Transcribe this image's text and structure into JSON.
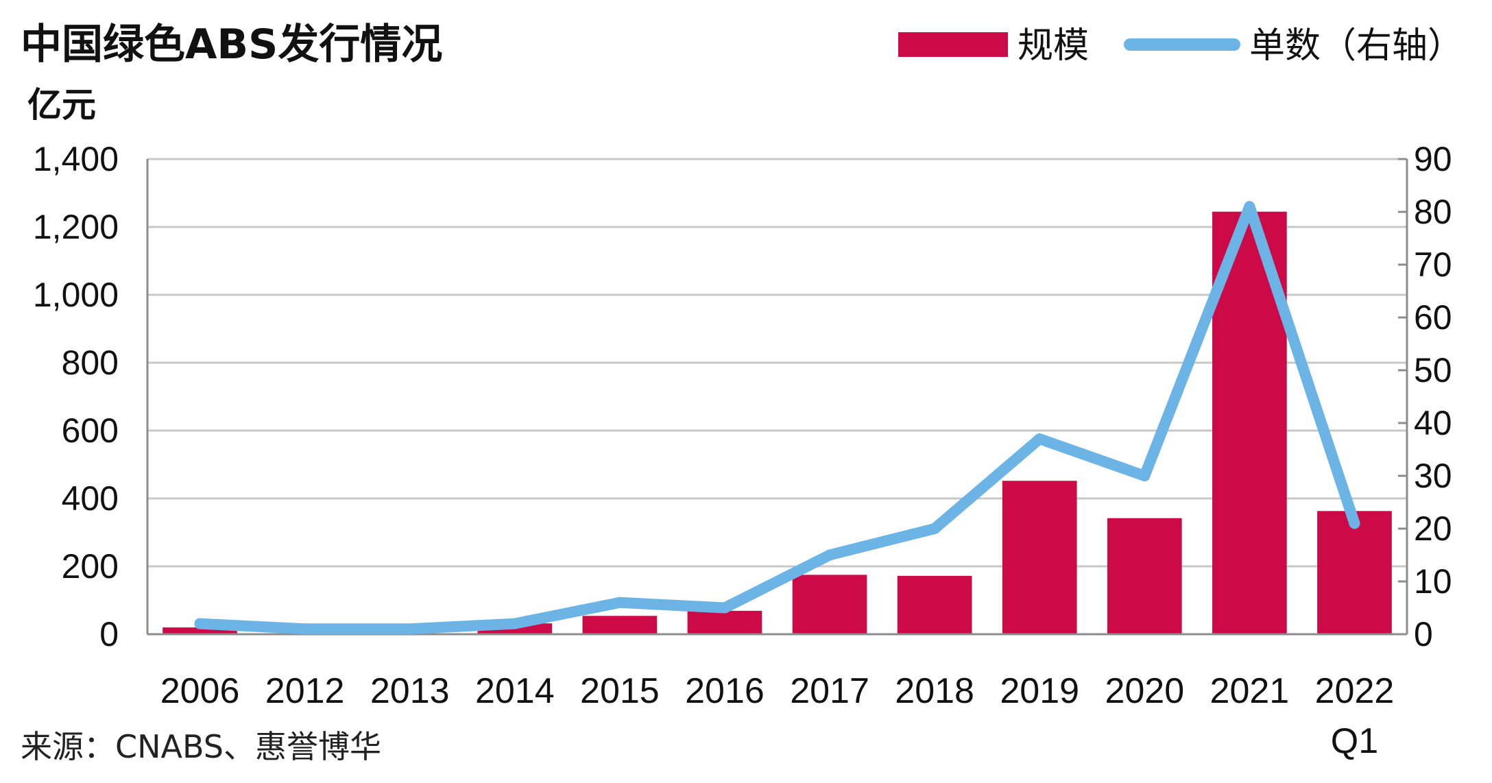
{
  "title": "中国绿色ABS发行情况",
  "source": "来源：CNABS、惠誉博华",
  "legend": {
    "bar_label": "规模",
    "line_label": "单数（右轴）"
  },
  "colors": {
    "bar": "#cc0a47",
    "line": "#6cb4e6"
  },
  "chart_data": {
    "type": "bar",
    "title": "中国绿色ABS发行情况",
    "ylabel": "亿元",
    "categories": [
      "2006",
      "2012",
      "2013",
      "2014",
      "2015",
      "2016",
      "2017",
      "2018",
      "2019",
      "2020",
      "2021",
      "2022"
    ],
    "category_sublabels": [
      "",
      "",
      "",
      "",
      "",
      "",
      "",
      "",
      "",
      "",
      "",
      "Q1"
    ],
    "ylim": [
      0,
      1400
    ],
    "yticks": [
      "0",
      "200",
      "400",
      "600",
      "800",
      "1,000",
      "1,200",
      "1,400"
    ],
    "ytick_values": [
      0,
      200,
      400,
      600,
      800,
      1000,
      1200,
      1400
    ],
    "y2lim": [
      0,
      90
    ],
    "y2ticks": [
      "0",
      "10",
      "20",
      "30",
      "40",
      "50",
      "60",
      "70",
      "80",
      "90"
    ],
    "y2tick_values": [
      0,
      10,
      20,
      30,
      40,
      50,
      60,
      70,
      80,
      90
    ],
    "grid": true,
    "legend_position": "top-right",
    "series": [
      {
        "name": "规模",
        "type": "bar",
        "axis": "left",
        "values": [
          20,
          0,
          0,
          32,
          54,
          69,
          175,
          172,
          452,
          342,
          1245,
          363
        ]
      },
      {
        "name": "单数（右轴）",
        "type": "line",
        "axis": "right",
        "values": [
          2,
          1,
          1,
          2,
          6,
          5,
          15,
          20,
          37,
          30,
          81,
          21
        ]
      }
    ]
  }
}
